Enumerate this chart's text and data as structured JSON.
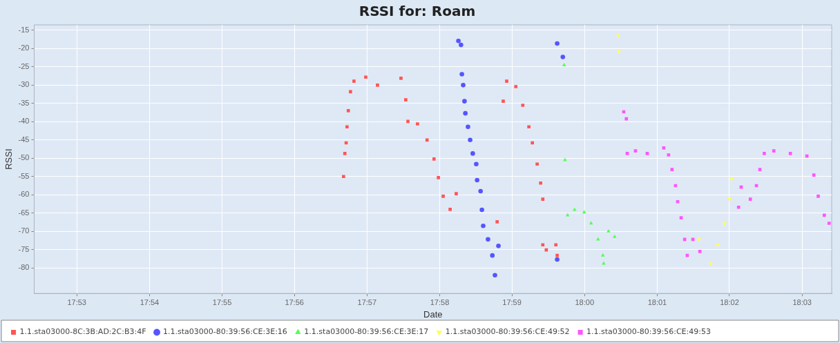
{
  "chart_data": {
    "type": "scatter",
    "title": "RSSI for: Roam",
    "xlabel": "Date",
    "ylabel": "RSSI",
    "xlim": [
      17.8735,
      18.0568
    ],
    "ylim": [
      -87,
      -13.5
    ],
    "xticks": [
      {
        "value": 17.8833,
        "label": "17:53"
      },
      {
        "value": 17.9,
        "label": "17:54"
      },
      {
        "value": 17.9167,
        "label": "17:55"
      },
      {
        "value": 17.9333,
        "label": "17:56"
      },
      {
        "value": 17.95,
        "label": "17:57"
      },
      {
        "value": 17.9667,
        "label": "17:58"
      },
      {
        "value": 17.9833,
        "label": "17:59"
      },
      {
        "value": 18.0,
        "label": "18:00"
      },
      {
        "value": 18.0167,
        "label": "18:01"
      },
      {
        "value": 18.0333,
        "label": "18:02"
      },
      {
        "value": 18.05,
        "label": "18:03"
      }
    ],
    "yticks": [
      -15,
      -20,
      -25,
      -30,
      -35,
      -40,
      -45,
      -50,
      -55,
      -60,
      -65,
      -70,
      -75,
      -80
    ],
    "grid": true,
    "legend": "bottom",
    "series": [
      {
        "name": "1.1.sta03000-8C:3B:AD:2C:B3:4F",
        "color": "#ff5555",
        "marker": "square",
        "x": [
          17.9446,
          17.9449,
          17.9452,
          17.9454,
          17.9457,
          17.9462,
          17.947,
          17.9497,
          17.9524,
          17.9578,
          17.9589,
          17.9594,
          17.9616,
          17.9638,
          17.9654,
          17.9664,
          17.9675,
          17.9691,
          17.9705,
          17.9799,
          17.9813,
          17.9821,
          17.9842,
          17.9858,
          17.9872,
          17.988,
          17.9891,
          17.9899,
          17.9904,
          17.9904,
          17.9912,
          17.9934,
          17.9937
        ],
        "values": [
          -55,
          -48.7,
          -45.8,
          -41.4,
          -37,
          -31.8,
          -28.9,
          -27.8,
          -30,
          -28.1,
          -34,
          -39.9,
          -40.6,
          -45,
          -50.2,
          -55.3,
          -60.4,
          -64,
          -59.7,
          -67.4,
          -34.4,
          -28.9,
          -30.4,
          -35.5,
          -41.4,
          -45.8,
          -51.6,
          -56.8,
          -61.2,
          -73.7,
          -75.1,
          -73.7,
          -76.6
        ]
      },
      {
        "name": "1.1.sta03000-80:39:56:CE:3E:16",
        "color": "#5555ff",
        "marker": "circle",
        "x": [
          17.971,
          17.9716,
          17.9718,
          17.9721,
          17.9724,
          17.9726,
          17.9732,
          17.9737,
          17.9743,
          17.9751,
          17.9753,
          17.9761,
          17.9764,
          17.9767,
          17.9778,
          17.9788,
          17.9794,
          17.9802,
          17.9937,
          17.995,
          17.9937
        ],
        "values": [
          -17.9,
          -19,
          -27,
          -30,
          -34.4,
          -37.7,
          -41.4,
          -45,
          -48.7,
          -51.6,
          -56,
          -59,
          -64.1,
          -68.5,
          -72.2,
          -76.6,
          -82,
          -74,
          -18.6,
          -22.3,
          -77.7
        ]
      },
      {
        "name": "1.1.sta03000-80:39:56:CE:3E:17",
        "color": "#55ff55",
        "marker": "triangle",
        "x": [
          17.9953,
          17.9955,
          17.9961,
          17.9977,
          17.9999,
          18.0015,
          18.0031,
          18.0042,
          18.0044,
          18.0055,
          18.0069
        ],
        "values": [
          -24.5,
          -50.5,
          -65.6,
          -64.1,
          -64.8,
          -67.8,
          -72.2,
          -76.6,
          -78.8,
          -70,
          -71.5
        ]
      },
      {
        "name": "1.1.sta03000-80:39:56:CE:49:52",
        "color": "#ffff55",
        "marker": "triangle",
        "x": [
          18.0077,
          18.0079,
          18.0263,
          18.029,
          18.0306,
          18.0322,
          18.0333,
          18.0338
        ],
        "values": [
          -16.4,
          -20.8,
          -72.2,
          -78.8,
          -73.7,
          -67.8,
          -61.2,
          -55.7
        ]
      },
      {
        "name": "1.1.sta03000-80:39:56:CE:49:53",
        "color": "#ff55ff",
        "marker": "square",
        "x": [
          18.009,
          18.0096,
          18.0098,
          18.0117,
          18.0144,
          18.0182,
          18.0193,
          18.0201,
          18.0209,
          18.0214,
          18.0222,
          18.023,
          18.0236,
          18.0249,
          18.0265,
          18.0354,
          18.036,
          18.0381,
          18.0395,
          18.0403,
          18.0413,
          18.0435,
          18.0473,
          18.0511,
          18.0527,
          18.0537,
          18.0551,
          18.0562
        ],
        "values": [
          -37.3,
          -39.2,
          -48.7,
          -48,
          -48.7,
          -47.2,
          -49.1,
          -53.1,
          -57.5,
          -61.9,
          -66.3,
          -72.2,
          -76.6,
          -72.2,
          -75.5,
          -63.4,
          -57.9,
          -61.2,
          -57.5,
          -53.1,
          -48.7,
          -48,
          -48.7,
          -49.4,
          -54.6,
          -60.4,
          -65.6,
          -67.8
        ]
      }
    ]
  }
}
